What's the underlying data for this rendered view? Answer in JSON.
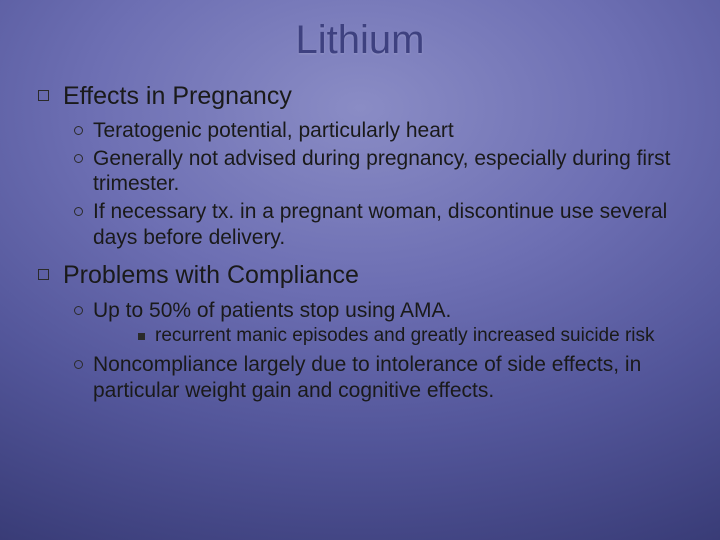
{
  "title": "Lithium",
  "colors": {
    "title_color": "#3e4180",
    "text_color": "#1a1a1a"
  },
  "sections": [
    {
      "heading": "Effects in Pregnancy",
      "items": [
        {
          "text": "Teratogenic potential, particularly heart"
        },
        {
          "text": "Generally not advised during pregnancy, especially during first trimester."
        },
        {
          "text": "If necessary tx. in a pregnant woman, discontinue use several days before delivery."
        }
      ]
    },
    {
      "heading": "Problems with Compliance",
      "items": [
        {
          "text": "Up to 50% of patients stop using AMA.",
          "subitems": [
            {
              "text": "recurrent manic episodes and greatly increased suicide risk"
            }
          ]
        },
        {
          "text": "Noncompliance largely due to intolerance of side effects, in particular weight gain and cognitive effects."
        }
      ]
    }
  ]
}
